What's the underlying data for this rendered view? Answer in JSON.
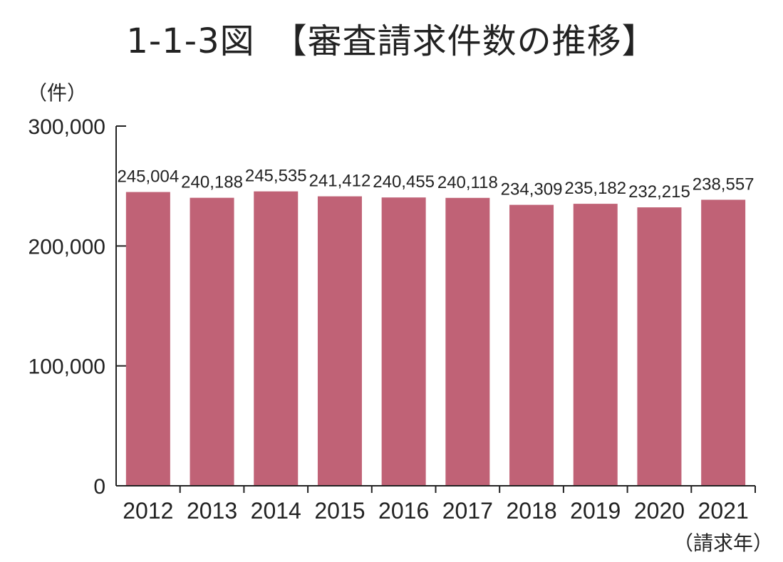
{
  "chart_data": {
    "type": "bar",
    "title": "1-1-3図　【審査請求件数の推移】",
    "ylabel": "（件）",
    "xlabel": "（請求年）",
    "categories": [
      "2012",
      "2013",
      "2014",
      "2015",
      "2016",
      "2017",
      "2018",
      "2019",
      "2020",
      "2021"
    ],
    "values": [
      245004,
      240188,
      245535,
      241412,
      240455,
      240118,
      234309,
      235182,
      232215,
      238557
    ],
    "value_labels": [
      "245,004",
      "240,188",
      "245,535",
      "241,412",
      "240,455",
      "240,118",
      "234,309",
      "235,182",
      "232,215",
      "238,557"
    ],
    "ylim": [
      0,
      300000
    ],
    "yticks": [
      0,
      100000,
      200000,
      300000
    ],
    "ytick_labels": [
      "0",
      "100,000",
      "200,000",
      "300,000"
    ],
    "grid": false,
    "bar_color": "#c06276"
  }
}
